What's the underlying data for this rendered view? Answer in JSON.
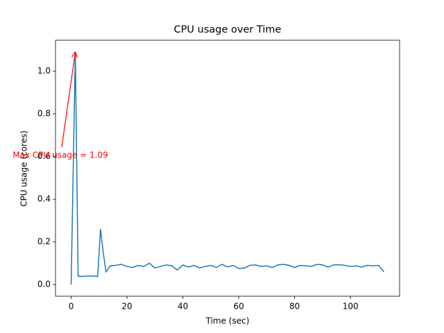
{
  "chart_data": {
    "type": "line",
    "title": "CPU usage over Time",
    "x_label": "Time (sec)",
    "y_label": "CPU usage (cores)",
    "annotation": "Max CPU usage = 1.09",
    "annotation_color": "#ff0000",
    "x": [
      0,
      1.5,
      2.5,
      4,
      6,
      8,
      9.5,
      10.5,
      11.5,
      12.5,
      14,
      16,
      18,
      20,
      22,
      24,
      26,
      28,
      30,
      32,
      34,
      36,
      38,
      40,
      42,
      44,
      46,
      48,
      50,
      52,
      54,
      56,
      58,
      60,
      62,
      64,
      66,
      68,
      70,
      72,
      74,
      76,
      78,
      80,
      82,
      84,
      86,
      88,
      90,
      92,
      94,
      96,
      98,
      100,
      102,
      104,
      106,
      108,
      110,
      112
    ],
    "series": [
      {
        "name": "CPU usage",
        "color": "#1f77b4",
        "values": [
          0,
          1.09,
          0.04,
          0.038,
          0.04,
          0.04,
          0.038,
          0.26,
          0.15,
          0.06,
          0.088,
          0.09,
          0.095,
          0.085,
          0.08,
          0.09,
          0.085,
          0.1,
          0.078,
          0.085,
          0.092,
          0.088,
          0.068,
          0.092,
          0.082,
          0.09,
          0.078,
          0.085,
          0.09,
          0.08,
          0.095,
          0.083,
          0.09,
          0.075,
          0.078,
          0.09,
          0.092,
          0.085,
          0.088,
          0.08,
          0.092,
          0.095,
          0.09,
          0.08,
          0.09,
          0.088,
          0.085,
          0.095,
          0.092,
          0.082,
          0.092,
          0.093,
          0.09,
          0.085,
          0.088,
          0.082,
          0.09,
          0.088,
          0.09,
          0.06
        ]
      }
    ],
    "xlim": [
      -5.6,
      117.6
    ],
    "ylim": [
      -0.0545,
      1.1445
    ],
    "xticks": [
      0,
      20,
      40,
      60,
      80,
      100
    ],
    "yticks": [
      {
        "value": 0,
        "label": "0.0"
      },
      0.2,
      0.4,
      0.6,
      0.8,
      {
        "value": 1,
        "label": "1.0"
      }
    ],
    "grid": false
  }
}
